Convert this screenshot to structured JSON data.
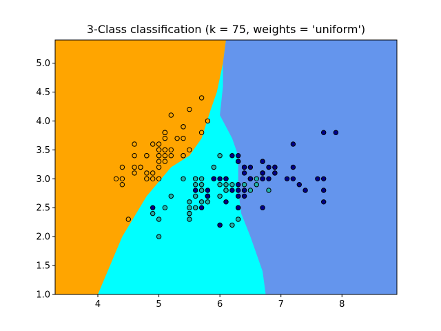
{
  "chart_data": {
    "type": "scatter",
    "title": "3-Class classification (k = 75, weights = 'uniform')",
    "xlabel": "",
    "ylabel": "",
    "xlim": [
      3.3,
      8.9
    ],
    "ylim": [
      1.0,
      5.4
    ],
    "x_ticks": [
      4,
      5,
      6,
      7,
      8
    ],
    "y_ticks": [
      1.0,
      1.5,
      2.0,
      2.5,
      3.0,
      3.5,
      4.0,
      4.5,
      5.0
    ],
    "grid": false,
    "legend": "none",
    "region_colors": {
      "class_0": "#FFA500",
      "class_1": "#00FFFF",
      "class_2": "#6495ED"
    },
    "point_colors": {
      "class_0": "#FFA500",
      "class_1": "#20B2AA",
      "class_2": "#00008B"
    },
    "decision_regions": {
      "class_0_region": [
        [
          3.3,
          5.4
        ],
        [
          6.1,
          5.4
        ],
        [
          6.05,
          5.0
        ],
        [
          5.95,
          4.5
        ],
        [
          5.85,
          4.2
        ],
        [
          5.7,
          3.7
        ],
        [
          5.5,
          3.4
        ],
        [
          5.2,
          3.2
        ],
        [
          4.8,
          2.7
        ],
        [
          4.4,
          2.0
        ],
        [
          4.0,
          1.0
        ],
        [
          3.3,
          1.0
        ]
      ],
      "class_2_region": [
        [
          6.1,
          5.4
        ],
        [
          8.9,
          5.4
        ],
        [
          8.9,
          1.0
        ],
        [
          6.75,
          1.0
        ],
        [
          6.7,
          1.4
        ],
        [
          6.5,
          2.0
        ],
        [
          6.35,
          2.4
        ],
        [
          6.3,
          2.8
        ],
        [
          6.3,
          3.4
        ],
        [
          6.2,
          3.7
        ],
        [
          6.1,
          3.9
        ],
        [
          6.0,
          4.1
        ],
        [
          6.05,
          4.6
        ],
        [
          6.05,
          5.0
        ]
      ]
    },
    "series": [
      {
        "name": "class_0",
        "points": [
          [
            5.1,
            3.5
          ],
          [
            4.9,
            3.0
          ],
          [
            4.7,
            3.2
          ],
          [
            4.6,
            3.1
          ],
          [
            5.0,
            3.6
          ],
          [
            5.4,
            3.9
          ],
          [
            4.6,
            3.4
          ],
          [
            5.0,
            3.4
          ],
          [
            4.4,
            2.9
          ],
          [
            4.9,
            3.1
          ],
          [
            5.4,
            3.7
          ],
          [
            4.8,
            3.4
          ],
          [
            4.8,
            3.0
          ],
          [
            4.3,
            3.0
          ],
          [
            5.8,
            4.0
          ],
          [
            5.7,
            4.4
          ],
          [
            5.4,
            3.9
          ],
          [
            5.1,
            3.5
          ],
          [
            5.7,
            3.8
          ],
          [
            5.1,
            3.8
          ],
          [
            5.4,
            3.4
          ],
          [
            5.1,
            3.7
          ],
          [
            4.6,
            3.6
          ],
          [
            5.1,
            3.3
          ],
          [
            4.8,
            3.4
          ],
          [
            5.0,
            3.0
          ],
          [
            5.0,
            3.4
          ],
          [
            5.2,
            3.5
          ],
          [
            5.2,
            3.4
          ],
          [
            4.7,
            3.2
          ],
          [
            4.8,
            3.1
          ],
          [
            5.4,
            3.4
          ],
          [
            5.2,
            4.1
          ],
          [
            5.5,
            4.2
          ],
          [
            5.0,
            3.2
          ],
          [
            5.5,
            3.5
          ],
          [
            4.9,
            3.6
          ],
          [
            4.4,
            3.0
          ],
          [
            5.1,
            3.4
          ],
          [
            5.0,
            3.5
          ],
          [
            4.5,
            2.3
          ],
          [
            4.4,
            3.2
          ],
          [
            5.0,
            3.5
          ],
          [
            5.1,
            3.8
          ],
          [
            4.8,
            3.0
          ],
          [
            5.1,
            3.8
          ],
          [
            4.6,
            3.2
          ],
          [
            5.3,
            3.7
          ],
          [
            5.0,
            3.3
          ]
        ]
      },
      {
        "name": "class_1",
        "points": [
          [
            6.4,
            3.2
          ],
          [
            5.5,
            2.3
          ],
          [
            6.5,
            2.8
          ],
          [
            5.7,
            2.8
          ],
          [
            6.3,
            3.3
          ],
          [
            4.9,
            2.4
          ],
          [
            6.6,
            2.9
          ],
          [
            5.2,
            2.7
          ],
          [
            5.0,
            2.0
          ],
          [
            5.9,
            3.0
          ],
          [
            6.0,
            2.2
          ],
          [
            6.1,
            2.9
          ],
          [
            5.6,
            2.9
          ],
          [
            6.7,
            3.1
          ],
          [
            5.6,
            3.0
          ],
          [
            5.8,
            2.7
          ],
          [
            6.2,
            2.2
          ],
          [
            5.6,
            2.5
          ],
          [
            5.9,
            3.2
          ],
          [
            6.1,
            2.8
          ],
          [
            6.3,
            2.5
          ],
          [
            6.1,
            2.8
          ],
          [
            6.4,
            2.9
          ],
          [
            6.6,
            3.0
          ],
          [
            6.8,
            2.8
          ],
          [
            6.7,
            3.0
          ],
          [
            6.0,
            2.9
          ],
          [
            5.7,
            2.6
          ],
          [
            5.5,
            2.4
          ],
          [
            5.5,
            2.4
          ],
          [
            5.8,
            2.7
          ],
          [
            6.0,
            2.7
          ],
          [
            5.4,
            3.0
          ],
          [
            6.0,
            3.4
          ],
          [
            6.7,
            3.1
          ],
          [
            6.3,
            2.3
          ],
          [
            5.6,
            3.0
          ],
          [
            5.5,
            2.5
          ],
          [
            5.5,
            2.6
          ],
          [
            6.1,
            3.0
          ],
          [
            5.8,
            2.6
          ],
          [
            5.0,
            2.3
          ],
          [
            5.6,
            2.7
          ],
          [
            5.7,
            3.0
          ],
          [
            5.7,
            2.9
          ],
          [
            6.2,
            2.9
          ],
          [
            5.1,
            2.5
          ],
          [
            5.7,
            2.8
          ],
          [
            6.9,
            3.2
          ]
        ]
      },
      {
        "name": "class_2",
        "points": [
          [
            6.3,
            3.3
          ],
          [
            5.8,
            2.7
          ],
          [
            7.1,
            3.0
          ],
          [
            6.3,
            2.9
          ],
          [
            6.5,
            3.0
          ],
          [
            7.6,
            3.0
          ],
          [
            4.9,
            2.5
          ],
          [
            7.3,
            2.9
          ],
          [
            6.7,
            2.5
          ],
          [
            7.2,
            3.6
          ],
          [
            6.5,
            3.2
          ],
          [
            6.4,
            2.7
          ],
          [
            6.8,
            3.0
          ],
          [
            5.7,
            2.5
          ],
          [
            5.8,
            2.8
          ],
          [
            6.4,
            3.2
          ],
          [
            6.5,
            3.0
          ],
          [
            7.7,
            3.8
          ],
          [
            7.7,
            2.6
          ],
          [
            6.0,
            2.2
          ],
          [
            6.9,
            3.2
          ],
          [
            5.6,
            2.8
          ],
          [
            7.7,
            2.8
          ],
          [
            6.3,
            2.7
          ],
          [
            6.7,
            3.3
          ],
          [
            7.2,
            3.2
          ],
          [
            6.2,
            2.8
          ],
          [
            6.1,
            3.0
          ],
          [
            6.4,
            2.8
          ],
          [
            7.2,
            3.0
          ],
          [
            7.4,
            2.8
          ],
          [
            7.9,
            3.8
          ],
          [
            6.4,
            2.8
          ],
          [
            6.3,
            2.8
          ],
          [
            6.1,
            2.6
          ],
          [
            7.7,
            3.0
          ],
          [
            6.3,
            3.4
          ],
          [
            6.4,
            3.1
          ],
          [
            6.0,
            3.0
          ],
          [
            6.9,
            3.1
          ],
          [
            6.7,
            3.1
          ],
          [
            6.9,
            3.1
          ],
          [
            5.8,
            2.7
          ],
          [
            6.8,
            3.2
          ],
          [
            6.7,
            3.3
          ],
          [
            6.7,
            3.0
          ],
          [
            6.3,
            2.5
          ],
          [
            6.5,
            3.0
          ],
          [
            6.2,
            3.4
          ],
          [
            5.9,
            3.0
          ]
        ]
      }
    ]
  }
}
